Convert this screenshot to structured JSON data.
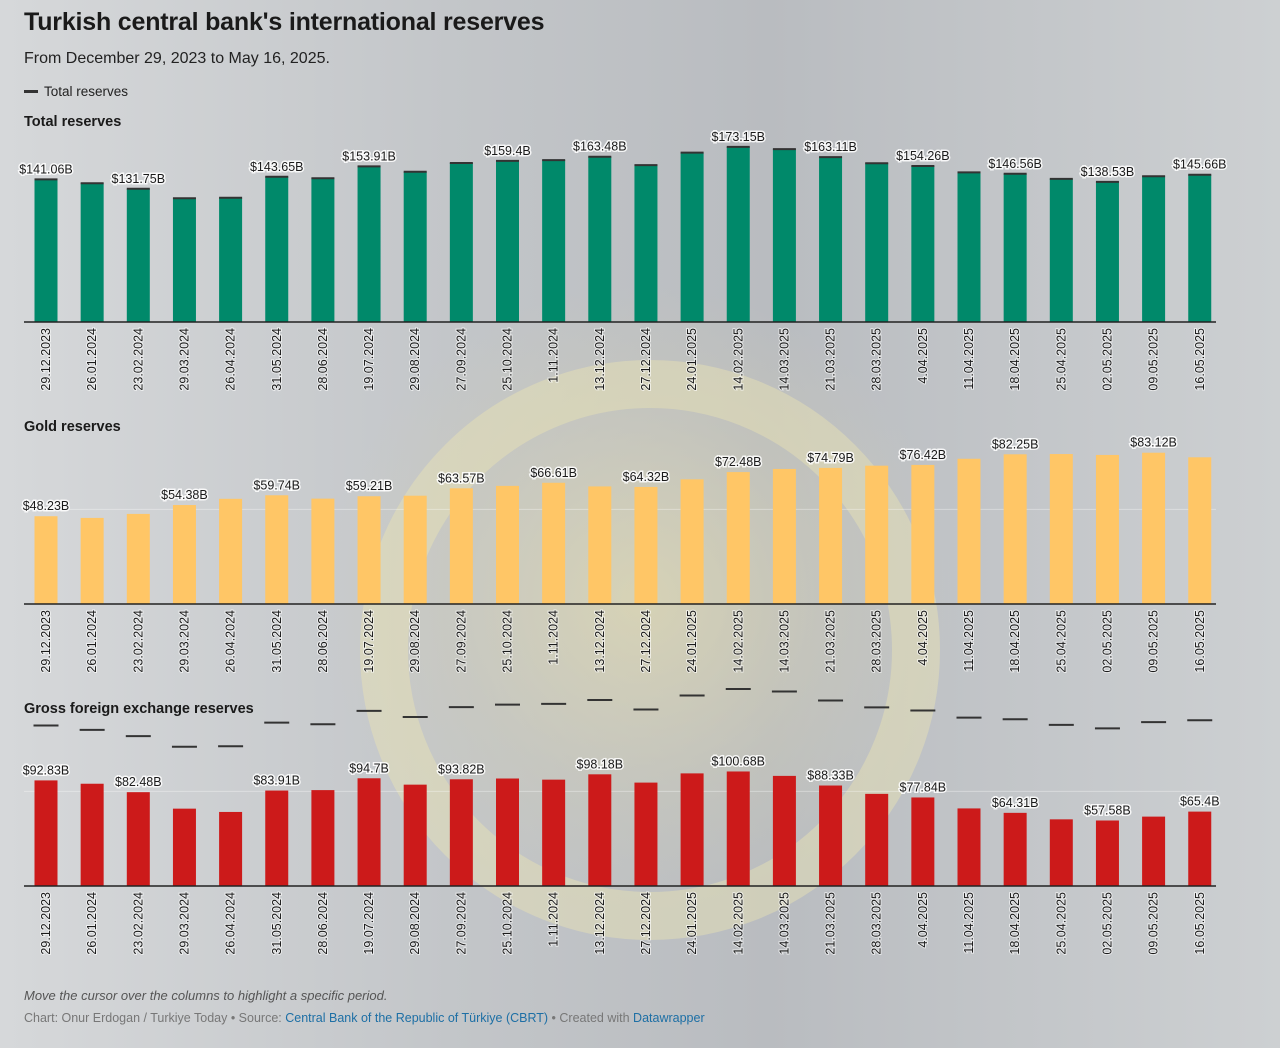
{
  "title": "Turkish central bank's international reserves",
  "subtitle": "From December 29, 2023 to May 16, 2025.",
  "legend": {
    "label": "Total reserves",
    "color": "#333333"
  },
  "notes": "Move the cursor over the columns to highlight a specific period.",
  "footer": {
    "chart_by": "Chart: Onur Erdogan / Turkiye Today",
    "sep1": " • Source: ",
    "source": "Central Bank of the Republic of Türkiye (CBRT)",
    "sep2": " • Created with ",
    "tool": "Datawrapper"
  },
  "chart_data": [
    {
      "type": "bar",
      "title": "Total reserves",
      "color": "#00896a",
      "ylim": [
        0,
        180
      ],
      "categories": [
        "29.12.2023",
        "26.01.2024",
        "23.02.2024",
        "29.03.2024",
        "26.04.2024",
        "31.05.2024",
        "28.06.2024",
        "19.07.2024",
        "29.08.2024",
        "27.09.2024",
        "25.10.2024",
        "1.11.2024",
        "13.12.2024",
        "27.12.2024",
        "24.01.2025",
        "14.02.2025",
        "14.03.2025",
        "21.03.2025",
        "28.03.2025",
        "4.04.2025",
        "11.04.2025",
        "18.04.2025",
        "25.04.2025",
        "02.05.2025",
        "09.05.2025",
        "16.05.2025"
      ],
      "values": [
        141.06,
        137.2,
        131.75,
        122.4,
        122.9,
        143.65,
        142.2,
        153.91,
        148.6,
        157.3,
        159.4,
        160.1,
        163.48,
        155.2,
        167.5,
        173.15,
        171.0,
        163.11,
        157.0,
        154.26,
        148.0,
        146.56,
        141.6,
        138.53,
        144.1,
        145.66
      ],
      "labels": [
        "$141.06B",
        "",
        "$131.75B",
        "",
        "",
        "$143.65B",
        "",
        "$153.91B",
        "",
        "",
        "$159.4B",
        "",
        "$163.48B",
        "",
        "",
        "$173.15B",
        "",
        "$163.11B",
        "",
        "$154.26B",
        "",
        "$146.56B",
        "",
        "$138.53B",
        "",
        "$145.66B"
      ]
    },
    {
      "type": "bar",
      "title": "Gold reserves",
      "color": "#ffc666",
      "ylim": [
        0,
        100
      ],
      "categories": [
        "29.12.2023",
        "26.01.2024",
        "23.02.2024",
        "29.03.2024",
        "26.04.2024",
        "31.05.2024",
        "28.06.2024",
        "19.07.2024",
        "29.08.2024",
        "27.09.2024",
        "25.10.2024",
        "1.11.2024",
        "13.12.2024",
        "27.12.2024",
        "24.01.2025",
        "14.02.2025",
        "14.03.2025",
        "21.03.2025",
        "28.03.2025",
        "4.04.2025",
        "11.04.2025",
        "18.04.2025",
        "25.04.2025",
        "02.05.2025",
        "09.05.2025",
        "16.05.2025"
      ],
      "values": [
        48.23,
        47.3,
        49.5,
        54.38,
        57.8,
        59.74,
        57.9,
        59.21,
        59.5,
        63.57,
        64.9,
        66.61,
        64.6,
        64.32,
        68.5,
        72.48,
        74.2,
        74.79,
        76.0,
        76.42,
        79.8,
        82.25,
        82.4,
        81.9,
        83.12,
        80.6
      ],
      "labels": [
        "$48.23B",
        "",
        "",
        "$54.38B",
        "",
        "$59.74B",
        "",
        "$59.21B",
        "",
        "$63.57B",
        "",
        "$66.61B",
        "",
        "$64.32B",
        "",
        "$72.48B",
        "",
        "$74.79B",
        "",
        "$76.42B",
        "",
        "$82.25B",
        "",
        "",
        "$83.12B",
        ""
      ],
      "total_reference": [
        141.06,
        137.2,
        131.75,
        122.4,
        122.9,
        143.65,
        142.2,
        153.91,
        148.6,
        157.3,
        159.4,
        160.1,
        163.48,
        155.2,
        167.5,
        173.15,
        171.0,
        163.11,
        157.0,
        154.26,
        148.0,
        146.56,
        141.6,
        138.53,
        144.1,
        145.66
      ]
    },
    {
      "type": "bar",
      "title": "Gross foreign exchange reserves",
      "color": "#cc1a1a",
      "ylim": [
        0,
        160
      ],
      "categories": [
        "29.12.2023",
        "26.01.2024",
        "23.02.2024",
        "29.03.2024",
        "26.04.2024",
        "31.05.2024",
        "28.06.2024",
        "19.07.2024",
        "29.08.2024",
        "27.09.2024",
        "25.10.2024",
        "1.11.2024",
        "13.12.2024",
        "27.12.2024",
        "24.01.2025",
        "14.02.2025",
        "14.03.2025",
        "21.03.2025",
        "28.03.2025",
        "4.04.2025",
        "11.04.2025",
        "18.04.2025",
        "25.04.2025",
        "02.05.2025",
        "09.05.2025",
        "16.05.2025"
      ],
      "values": [
        92.83,
        89.9,
        82.48,
        68.0,
        65.1,
        83.91,
        84.3,
        94.7,
        89.1,
        93.82,
        94.5,
        93.5,
        98.18,
        90.9,
        99.0,
        100.68,
        96.8,
        88.33,
        81.0,
        77.84,
        68.2,
        64.31,
        58.6,
        57.58,
        61.0,
        65.4
      ],
      "labels": [
        "$92.83B",
        "",
        "$82.48B",
        "",
        "",
        "$83.91B",
        "",
        "$94.7B",
        "",
        "$93.82B",
        "",
        "",
        "$98.18B",
        "",
        "",
        "$100.68B",
        "",
        "$88.33B",
        "",
        "$77.84B",
        "",
        "$64.31B",
        "",
        "$57.58B",
        "",
        "$65.4B"
      ],
      "total_reference": [
        141.06,
        137.2,
        131.75,
        122.4,
        122.9,
        143.65,
        142.2,
        153.91,
        148.6,
        157.3,
        159.4,
        160.1,
        163.48,
        155.2,
        167.5,
        173.15,
        171.0,
        163.11,
        157.0,
        154.26,
        148.0,
        146.56,
        141.6,
        138.53,
        144.1,
        145.66
      ]
    }
  ]
}
